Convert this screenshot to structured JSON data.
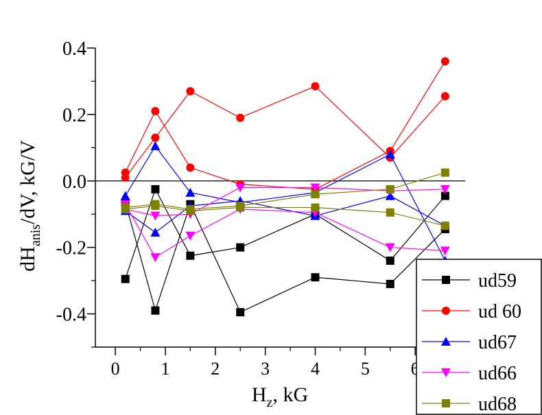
{
  "chart_data": {
    "type": "line",
    "xlabel": "H",
    "xlabel_sub": "z",
    "xlabel_suffix": ", kG",
    "ylabel_prefix": "dH",
    "ylabel_sub": "anis",
    "ylabel_suffix": "/dV, kG/V",
    "xlim": [
      -0.4,
      7.0
    ],
    "ylim": [
      -0.5,
      0.4
    ],
    "xticks": [
      0,
      1,
      2,
      3,
      4,
      5,
      6
    ],
    "yticks": [
      -0.4,
      -0.2,
      0.0,
      0.2,
      0.4
    ],
    "ytick_labels": [
      "-0.4",
      "-0.2",
      "0.0",
      "0.2",
      "0.4"
    ],
    "zero_line": true,
    "legend_position": "bottom-right",
    "series": [
      {
        "name": "ud59",
        "color": "#000000",
        "marker": "square",
        "lines": [
          {
            "x": [
              0.2,
              0.8,
              1.5,
              2.5,
              4.0,
              5.5,
              6.6
            ],
            "y": [
              -0.295,
              -0.025,
              -0.225,
              -0.2,
              -0.1,
              -0.24,
              -0.045
            ]
          },
          {
            "x": [
              0.2,
              0.8,
              1.5,
              2.5,
              4.0,
              5.5,
              6.6
            ],
            "y": [
              -0.065,
              -0.39,
              -0.07,
              -0.395,
              -0.29,
              -0.31,
              -0.145
            ]
          }
        ]
      },
      {
        "name": "ud 60",
        "color": "#ff0000",
        "marker": "circle",
        "lines": [
          {
            "x": [
              0.2,
              0.8,
              1.5,
              2.5,
              4.0,
              5.5,
              6.6
            ],
            "y": [
              0.025,
              0.21,
              0.04,
              -0.01,
              -0.025,
              0.09,
              0.36
            ]
          },
          {
            "x": [
              0.2,
              0.8,
              1.5,
              2.5,
              4.0,
              5.5,
              6.6
            ],
            "y": [
              0.01,
              0.13,
              0.27,
              0.19,
              0.285,
              0.07,
              0.255
            ]
          }
        ]
      },
      {
        "name": "ud67",
        "color": "#0000ff",
        "marker": "triangle-up",
        "lines": [
          {
            "x": [
              0.2,
              0.8,
              1.5,
              2.5,
              4.0,
              5.5,
              6.6
            ],
            "y": [
              -0.045,
              0.105,
              -0.035,
              -0.065,
              -0.035,
              0.08,
              -0.24
            ]
          },
          {
            "x": [
              0.2,
              0.8,
              1.5,
              2.5,
              4.0,
              5.5,
              6.6
            ],
            "y": [
              -0.09,
              -0.155,
              -0.075,
              -0.06,
              -0.105,
              -0.045,
              -0.135
            ]
          }
        ]
      },
      {
        "name": "ud66",
        "color": "#ff00ff",
        "marker": "triangle-down",
        "lines": [
          {
            "x": [
              0.2,
              0.8,
              1.5,
              2.5,
              4.0,
              5.5,
              6.6
            ],
            "y": [
              -0.07,
              -0.23,
              -0.165,
              -0.085,
              -0.095,
              -0.2,
              -0.21
            ]
          },
          {
            "x": [
              0.2,
              0.8,
              1.5,
              2.5,
              4.0,
              5.5,
              6.6
            ],
            "y": [
              -0.085,
              -0.105,
              -0.1,
              -0.02,
              -0.02,
              -0.03,
              -0.025
            ]
          }
        ]
      },
      {
        "name": "ud68",
        "color": "#808000",
        "marker": "square",
        "lines": [
          {
            "x": [
              0.2,
              0.8,
              1.5,
              2.5,
              4.0,
              5.5,
              6.6
            ],
            "y": [
              -0.08,
              -0.07,
              -0.085,
              -0.075,
              -0.04,
              -0.025,
              0.025
            ]
          },
          {
            "x": [
              0.2,
              0.8,
              1.5,
              2.5,
              4.0,
              5.5,
              6.6
            ],
            "y": [
              -0.085,
              -0.075,
              -0.09,
              -0.08,
              -0.08,
              -0.095,
              -0.135
            ]
          }
        ]
      }
    ]
  }
}
